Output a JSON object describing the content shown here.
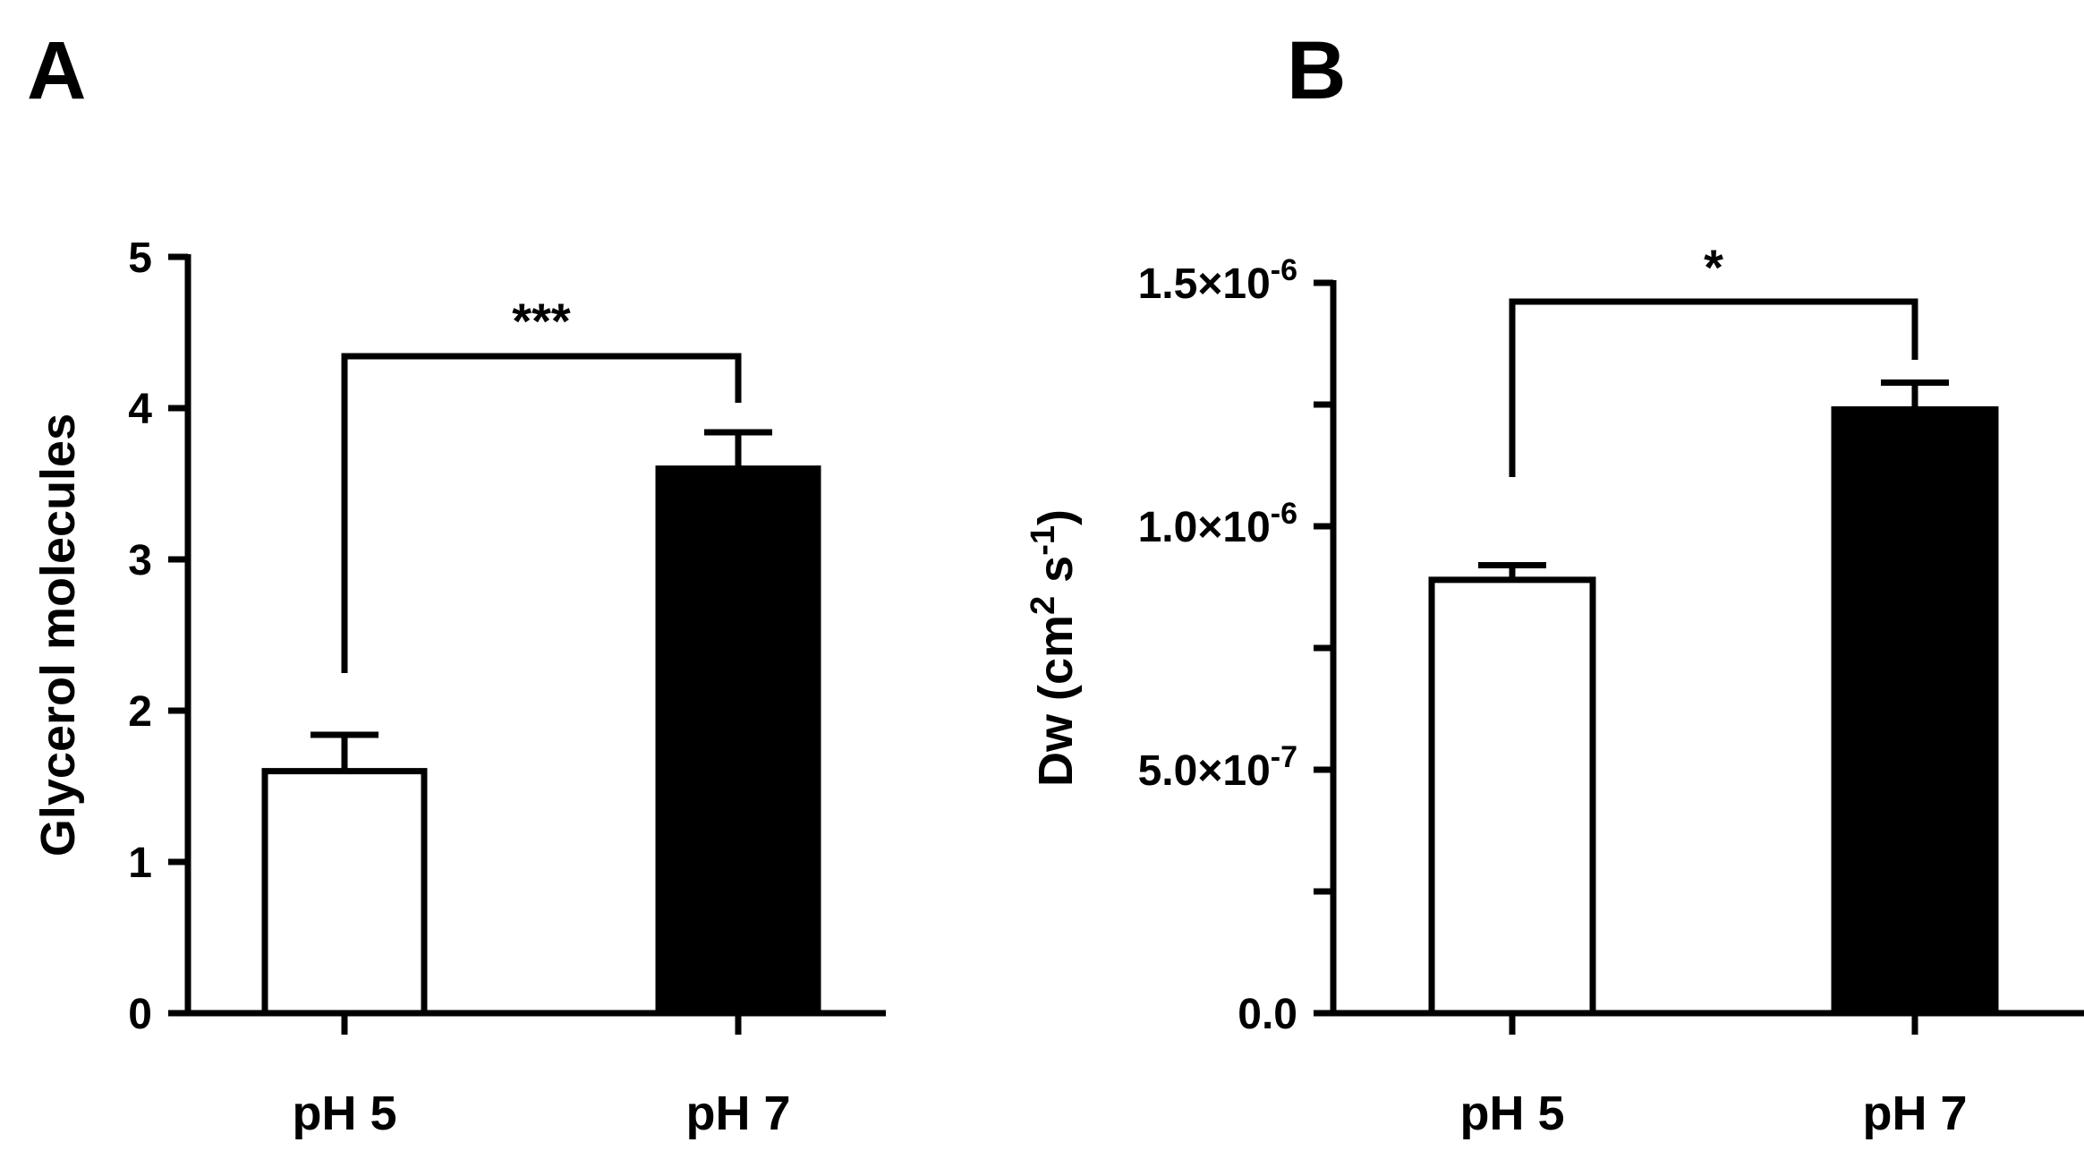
{
  "panels": [
    {
      "letter": "A",
      "chart_data": {
        "type": "bar",
        "categories": [
          "pH 5",
          "pH 7"
        ],
        "values": [
          1.6,
          3.6
        ],
        "error": [
          0.24,
          0.24
        ],
        "bar_colors": [
          "#ffffff",
          "#000000"
        ],
        "ylabel": "Glycerol molecules",
        "ylim": [
          0,
          5
        ],
        "yticks": [
          0,
          1,
          2,
          3,
          4,
          5
        ],
        "ytick_labels": [
          "0",
          "1",
          "2",
          "3",
          "4",
          "5"
        ],
        "minor_ticks": [],
        "significance": {
          "label": "***",
          "from": 0,
          "to": 1
        },
        "grid": false
      }
    },
    {
      "letter": "B",
      "chart_data": {
        "type": "bar",
        "categories": [
          "pH 5",
          "pH 7"
        ],
        "values": [
          8.9e-07,
          1.24e-06
        ],
        "error": [
          3e-08,
          5.5e-08
        ],
        "bar_colors": [
          "#ffffff",
          "#000000"
        ],
        "ylabel": {
          "base": "Dw (cm",
          "sup1": "2",
          "mid": " s",
          "sup2": "-1",
          "end": ")"
        },
        "ylim": [
          0,
          1.5e-06
        ],
        "yticks": [
          0,
          5e-07,
          1e-06,
          1.5e-06
        ],
        "ytick_labels": [
          {
            "base": "0.0",
            "exp": ""
          },
          {
            "base": "5.0×10",
            "exp": "-7"
          },
          {
            "base": "1.0×10",
            "exp": "-6"
          },
          {
            "base": "1.5×10",
            "exp": "-6"
          }
        ],
        "minor_ticks": [
          2.5e-07,
          7.5e-07,
          1.25e-06
        ],
        "significance": {
          "label": "*",
          "from": 0,
          "to": 1
        },
        "grid": false
      }
    }
  ]
}
